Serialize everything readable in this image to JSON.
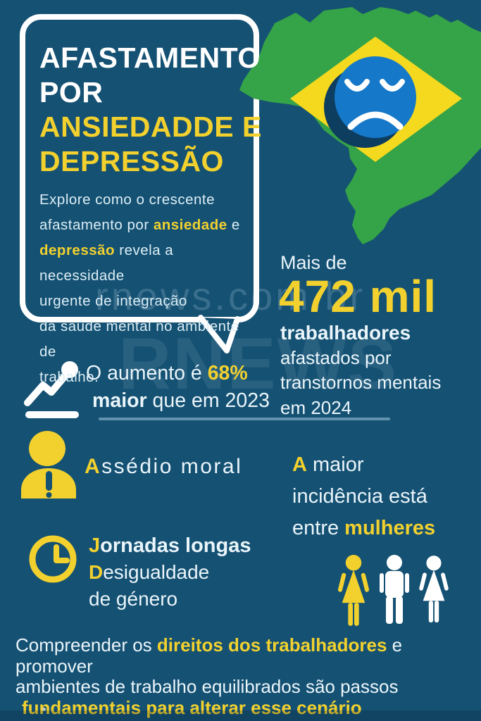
{
  "colors": {
    "background": "#155173",
    "accent_yellow": "#F2D12E",
    "map_green": "#35A347",
    "flag_yellow": "#F5D91F",
    "face_blue": "#1578C8",
    "text_light": "#EAF5FA"
  },
  "bubble": {
    "title": [
      [
        {
          "t": "AFASTAMENTO"
        }
      ],
      [
        {
          "t": "POR"
        }
      ],
      [
        {
          "t": "ANSIEDADDE E",
          "s": "ttl-y"
        }
      ],
      [
        {
          "t": "DEPRESSÃO",
          "s": "ttl-y"
        }
      ]
    ],
    "paragraph": [
      [
        {
          "t": "Explore como o crescente"
        }
      ],
      [
        {
          "t": "afastamento por "
        },
        {
          "t": "ansiedade",
          "s": "hl"
        },
        {
          "t": " e"
        }
      ],
      [
        {
          "t": "depressão",
          "s": "hl"
        },
        {
          "t": " revela a necessidade"
        }
      ],
      [
        {
          "t": "urgente de integração"
        }
      ],
      [
        {
          "t": "da saúde mental no ambiente de"
        }
      ],
      [
        {
          "t": "trabalho."
        }
      ]
    ]
  },
  "map": {
    "icon": "brazil-map-with-sad-face"
  },
  "stat": {
    "intro": "Mais de",
    "big_number": "472 mil",
    "line1": "trabalhadores",
    "line2": "afastados por",
    "line3": "transtornos mentais",
    "line4": "em 2024"
  },
  "increase": {
    "lines": [
      [
        {
          "t": "O aumento é "
        },
        {
          "t": "68%",
          "s": "hl"
        }
      ],
      [
        {
          "t": "maior",
          "s": "b"
        },
        {
          "t": " que em 2023"
        }
      ]
    ]
  },
  "harassment": {
    "label": [
      [
        {
          "t": "A",
          "s": "hl"
        },
        {
          "t": "ssédio moral"
        }
      ]
    ]
  },
  "incidence": {
    "lines": [
      [
        {
          "t": "A",
          "s": "hl"
        },
        {
          "t": " maior"
        }
      ],
      [
        {
          "t": "incidência está"
        }
      ],
      [
        {
          "t": "entre "
        },
        {
          "t": "mulheres",
          "s": "hl"
        }
      ]
    ]
  },
  "workload": {
    "lines": [
      [
        {
          "t": "J",
          "s": "hl"
        },
        {
          "t": "ornadas longas",
          "s": "b"
        }
      ],
      [
        {
          "t": "D",
          "s": "hl"
        },
        {
          "t": "esigualdade"
        }
      ],
      [
        {
          "t": "de género"
        }
      ]
    ]
  },
  "footer": {
    "lines": [
      [
        {
          "t": "Compreender os "
        },
        {
          "t": "direitos dos trabalhadores",
          "s": "hl"
        },
        {
          "t": " e promover"
        }
      ],
      [
        {
          "t": "ambientes de trabalho equilibrados são passos"
        }
      ],
      [
        {
          "t": "fundamentais para alterar esse cenário",
          "s": "hl"
        }
      ]
    ]
  },
  "watermark": {
    "small": "rnews.com.br",
    "big": "RNEWS"
  }
}
